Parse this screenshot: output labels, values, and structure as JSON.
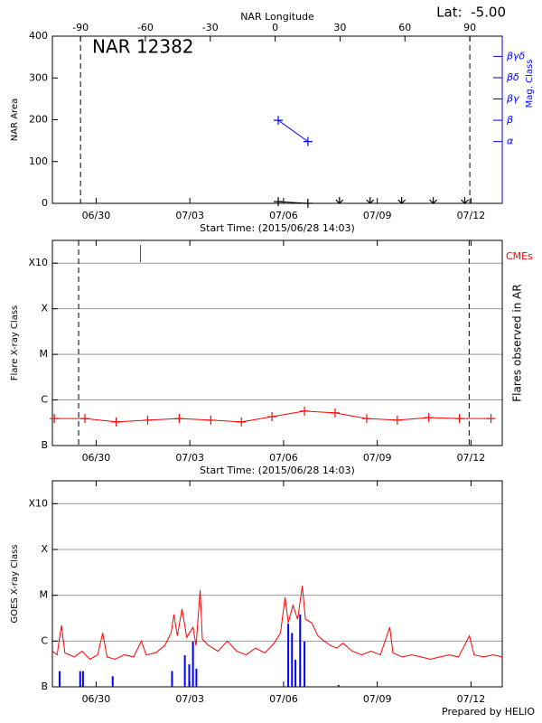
{
  "footer": "Prepared by HELIO",
  "chart_data": [
    {
      "type": "line",
      "title": "NAR 12382",
      "annotation": "Lat:  -5.00",
      "x2label": "NAR Longitude",
      "xlabel": "Start Time: (2015/06/28 14:03)",
      "ylabel": "NAR Area",
      "y2label": "Mag. Class",
      "y2color": "#0000ff",
      "xlim": [
        0,
        14.4
      ],
      "xticks": [
        {
          "value": 1.4,
          "label": "06/30"
        },
        {
          "value": 4.4,
          "label": "07/03"
        },
        {
          "value": 7.4,
          "label": "07/06"
        },
        {
          "value": 10.4,
          "label": "07/09"
        },
        {
          "value": 13.4,
          "label": "07/12"
        }
      ],
      "x2lim": [
        -103,
        105
      ],
      "x2ticks": [
        -90,
        -60,
        -30,
        0,
        30,
        60,
        90
      ],
      "x2_vlines": [
        -90,
        90
      ],
      "ylim": [
        0,
        400
      ],
      "yticks": [
        0,
        100,
        200,
        300,
        400
      ],
      "y2lim": [
        -1.9,
        5.95
      ],
      "y2ticks": [
        {
          "value": 1,
          "label": "α"
        },
        {
          "value": 2,
          "label": "β"
        },
        {
          "value": 3,
          "label": "βγ"
        },
        {
          "value": 4,
          "label": "βδ"
        },
        {
          "value": 5,
          "label": "βγδ"
        }
      ],
      "grid": false,
      "series": [
        {
          "color": "#0000ff",
          "axis": "y2",
          "marker": "+",
          "x": [
            7.23,
            8.18
          ],
          "values": [
            2,
            1
          ]
        },
        {
          "color": "#000000",
          "marker": "+",
          "x": [
            7.23,
            8.18
          ],
          "values": [
            4,
            0
          ]
        },
        {
          "color": "#000000",
          "marker": "arrow",
          "line": false,
          "x": [
            9.19,
            10.17,
            11.18,
            12.19,
            13.2
          ],
          "values": [
            0,
            0,
            0,
            0,
            0
          ]
        }
      ]
    },
    {
      "type": "line",
      "xlabel": "Start Time: (2015/06/28 14:03)",
      "ylabel": "Flare X-ray Class",
      "y2label": "Flares observed in AR",
      "xlim": [
        0,
        14.4
      ],
      "xticks": [
        {
          "value": 1.4,
          "label": "06/30"
        },
        {
          "value": 4.4,
          "label": "07/03"
        },
        {
          "value": 7.4,
          "label": "07/06"
        },
        {
          "value": 10.4,
          "label": "07/09"
        },
        {
          "value": 13.4,
          "label": "07/12"
        }
      ],
      "log": true,
      "ylim": [
        1e-07,
        0.00316
      ],
      "yticks": [
        {
          "value": 1e-07,
          "label": "B"
        },
        {
          "value": 1e-06,
          "label": "C"
        },
        {
          "value": 1e-05,
          "label": "M"
        },
        {
          "value": 0.0001,
          "label": "X"
        },
        {
          "value": 0.001,
          "label": "X10"
        }
      ],
      "grid": true,
      "vlines": [
        0.84,
        13.34
      ],
      "cmes": {
        "name": "CMEs",
        "color": "#ff0000",
        "x": [
          2.82
        ]
      },
      "series": [
        {
          "color": "#ff0000",
          "marker": "+",
          "x": [
            0.06,
            1.04,
            2.04,
            3.05,
            4.06,
            5.07,
            6.05,
            7.03,
            8.07,
            9.05,
            10.06,
            11.04,
            12.05,
            13.03,
            14.04
          ],
          "values": [
            3.9e-07,
            3.9e-07,
            3.3e-07,
            3.6e-07,
            3.9e-07,
            3.6e-07,
            3.3e-07,
            4.3e-07,
            5.7e-07,
            5.2e-07,
            3.9e-07,
            3.6e-07,
            4.1e-07,
            3.9e-07,
            3.9e-07
          ]
        }
      ]
    },
    {
      "type": "line",
      "ylabel": "GOES X-ray Class",
      "xlim": [
        0,
        14.4
      ],
      "xticks": [
        {
          "value": 1.4,
          "label": "06/30"
        },
        {
          "value": 4.4,
          "label": "07/03"
        },
        {
          "value": 7.4,
          "label": "07/06"
        },
        {
          "value": 10.4,
          "label": "07/09"
        },
        {
          "value": 13.4,
          "label": "07/12"
        }
      ],
      "log": true,
      "ylim": [
        1e-07,
        0.00316
      ],
      "yticks": [
        {
          "value": 1e-07,
          "label": "B"
        },
        {
          "value": 1e-06,
          "label": "C"
        },
        {
          "value": 1e-05,
          "label": "M"
        },
        {
          "value": 0.0001,
          "label": "X"
        },
        {
          "value": 0.001,
          "label": "X10"
        }
      ],
      "grid": true,
      "series": [
        {
          "color": "#ff0000",
          "x": [
            0,
            0.15,
            0.29,
            0.4,
            0.7,
            0.95,
            1.2,
            1.45,
            1.61,
            1.75,
            2.0,
            2.3,
            2.6,
            2.85,
            3.0,
            3.3,
            3.6,
            3.8,
            3.89,
            4.0,
            4.15,
            4.3,
            4.5,
            4.6,
            4.73,
            4.8,
            5.0,
            5.3,
            5.6,
            5.9,
            6.2,
            6.5,
            6.8,
            7.1,
            7.3,
            7.45,
            7.55,
            7.7,
            7.85,
            8.0,
            8.1,
            8.3,
            8.5,
            8.7,
            8.9,
            9.1,
            9.3,
            9.6,
            9.9,
            10.2,
            10.5,
            10.8,
            10.9,
            11.2,
            11.5,
            11.8,
            12.1,
            12.4,
            12.7,
            13.0,
            13.35,
            13.5,
            13.8,
            14.1,
            14.4
          ],
          "values": [
            6e-07,
            5e-07,
            2.2e-06,
            5.5e-07,
            4.5e-07,
            6e-07,
            4e-07,
            5e-07,
            1.5e-06,
            4.5e-07,
            4e-07,
            5e-07,
            4.5e-07,
            1e-06,
            5e-07,
            5.5e-07,
            8e-07,
            1.5e-06,
            3.8e-06,
            1.3e-06,
            5e-06,
            1.2e-06,
            2e-06,
            8e-07,
            1.3e-05,
            1.1e-06,
            8e-07,
            6e-07,
            1e-06,
            6e-07,
            5e-07,
            7e-07,
            5.5e-07,
            9e-07,
            1.5e-06,
            9e-06,
            2.5e-06,
            6e-06,
            3e-06,
            1.6e-05,
            3e-06,
            2.5e-06,
            1.3e-06,
            1e-06,
            8e-07,
            7e-07,
            9e-07,
            6e-07,
            5e-07,
            6e-07,
            5e-07,
            2e-06,
            5.5e-07,
            4.5e-07,
            5e-07,
            4.5e-07,
            4e-07,
            4.5e-07,
            5e-07,
            4.5e-07,
            1.3e-06,
            5e-07,
            4.5e-07,
            5e-07,
            4.5e-07
          ]
        },
        {
          "type": "bar",
          "color": "#0000ff",
          "x": [
            0.23,
            0.89,
            0.98,
            1.93,
            3.83,
            4.24,
            4.38,
            4.5,
            4.61,
            7.55,
            7.67,
            7.78,
            7.93,
            8.07,
            9.16
          ],
          "values": [
            2.2e-07,
            2.2e-07,
            2.2e-07,
            1.7e-07,
            2.2e-07,
            4.9e-07,
            3.1e-07,
            9.8e-07,
            2.5e-07,
            2.4e-06,
            1.5e-06,
            3.9e-07,
            3.8e-06,
            9.8e-07,
            1.1e-07
          ]
        }
      ]
    }
  ]
}
